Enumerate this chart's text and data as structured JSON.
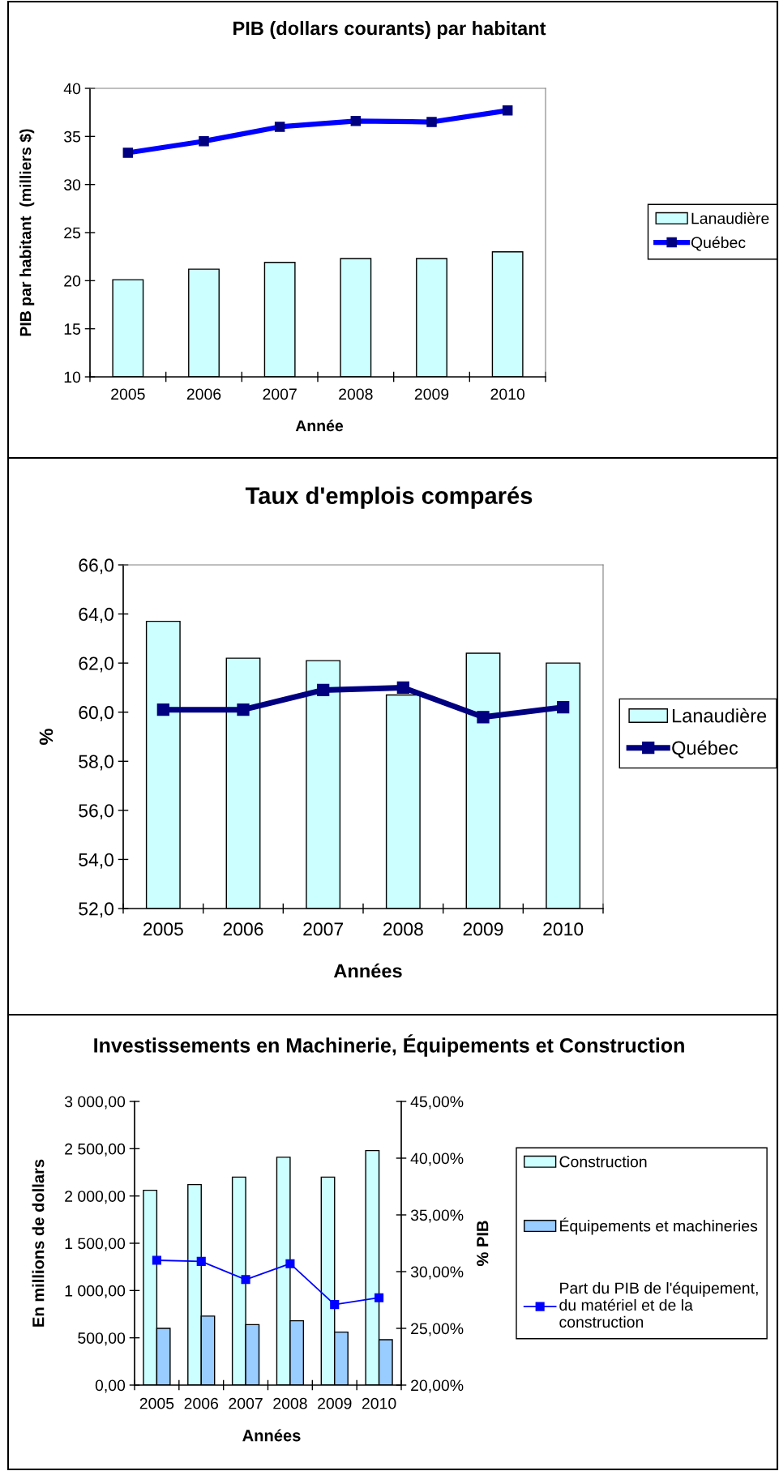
{
  "chart_data": [
    {
      "type": "bar",
      "title": "PIB (dollars courants) par habitant",
      "xlabel": "Année",
      "ylabel": "PIB par habitant  (milliers $)",
      "categories": [
        "2005",
        "2006",
        "2007",
        "2008",
        "2009",
        "2010"
      ],
      "marker": "square",
      "legend": "right",
      "ylim": [
        10,
        40
      ],
      "yticks": [
        10,
        15,
        20,
        25,
        30,
        35,
        40
      ],
      "series": [
        {
          "name": "Lanaudière",
          "color": "#ccffff",
          "values": [
            20.1,
            21.2,
            21.9,
            22.3,
            22.3,
            23.0
          ]
        },
        {
          "name": "Québec",
          "type": "line",
          "color": "#0000ff",
          "colors": [
            "#000080",
            "#000080",
            "#000080",
            "#000080",
            "#000080",
            "#000080"
          ],
          "values": [
            33.3,
            34.5,
            36.0,
            36.6,
            36.5,
            37.7
          ]
        }
      ]
    },
    {
      "type": "bar",
      "title": "Taux d'emplois comparés",
      "xlabel": "Années",
      "ylabel": "%",
      "categories": [
        "2005",
        "2006",
        "2007",
        "2008",
        "2009",
        "2010"
      ],
      "marker": "square",
      "legend": "right",
      "ylim": [
        52,
        66
      ],
      "yticks": [
        {
          "value": 52,
          "label": "52,0"
        },
        {
          "value": 54,
          "label": "54,0"
        },
        {
          "value": 56,
          "label": "56,0"
        },
        {
          "value": 58,
          "label": "58,0"
        },
        {
          "value": 60,
          "label": "60,0"
        },
        {
          "value": 62,
          "label": "62,0"
        },
        {
          "value": 64,
          "label": "64,0"
        },
        {
          "value": 66,
          "label": "66,0"
        }
      ],
      "series": [
        {
          "name": "Lanaudière",
          "color": "#ccffff",
          "values": [
            63.7,
            62.2,
            62.1,
            60.7,
            62.4,
            62.0
          ]
        },
        {
          "name": "Québec",
          "type": "line",
          "color": "#000080",
          "values": [
            60.1,
            60.1,
            60.9,
            61.0,
            59.8,
            60.2
          ]
        }
      ]
    },
    {
      "type": "bar",
      "title": "Investissements en Machinerie, Équipements et Construction",
      "xlabel": "Années",
      "ylabel": "En millions de dollars",
      "y2label": "% PIB",
      "categories": [
        "2005",
        "2006",
        "2007",
        "2008",
        "2009",
        "2010"
      ],
      "marker": "square",
      "legend": "right",
      "ylim": [
        0,
        3000
      ],
      "yticks": [
        {
          "value": 0,
          "label": "0,00"
        },
        {
          "value": 500,
          "label": "500,00"
        },
        {
          "value": 1000,
          "label": "1 000,00"
        },
        {
          "value": 1500,
          "label": "1 500,00"
        },
        {
          "value": 2000,
          "label": "2 000,00"
        },
        {
          "value": 2500,
          "label": "2 500,00"
        },
        {
          "value": 3000,
          "label": "3 000,00"
        }
      ],
      "y2lim": [
        20,
        45
      ],
      "y2ticks": [
        {
          "value": 20,
          "label": "20,00%"
        },
        {
          "value": 25,
          "label": "25,00%"
        },
        {
          "value": 30,
          "label": "30,00%"
        },
        {
          "value": 35,
          "label": "35,00%"
        },
        {
          "value": 40,
          "label": "40,00%"
        },
        {
          "value": 45,
          "label": "45,00%"
        }
      ],
      "series": [
        {
          "name": "Construction",
          "color": "#ccffff",
          "values": [
            2060,
            2120,
            2200,
            2410,
            2200,
            2480
          ]
        },
        {
          "name": "Équipements et machineries",
          "color": "#99ccff",
          "values": [
            600,
            730,
            640,
            680,
            560,
            480
          ]
        },
        {
          "name": "Part du PIB de l'équipement,\ndu matériel et de la\nconstruction",
          "type": "line",
          "axis": "y2",
          "color": "#0000ff",
          "values": [
            31.0,
            30.9,
            29.3,
            30.7,
            27.1,
            27.7
          ]
        }
      ]
    }
  ]
}
